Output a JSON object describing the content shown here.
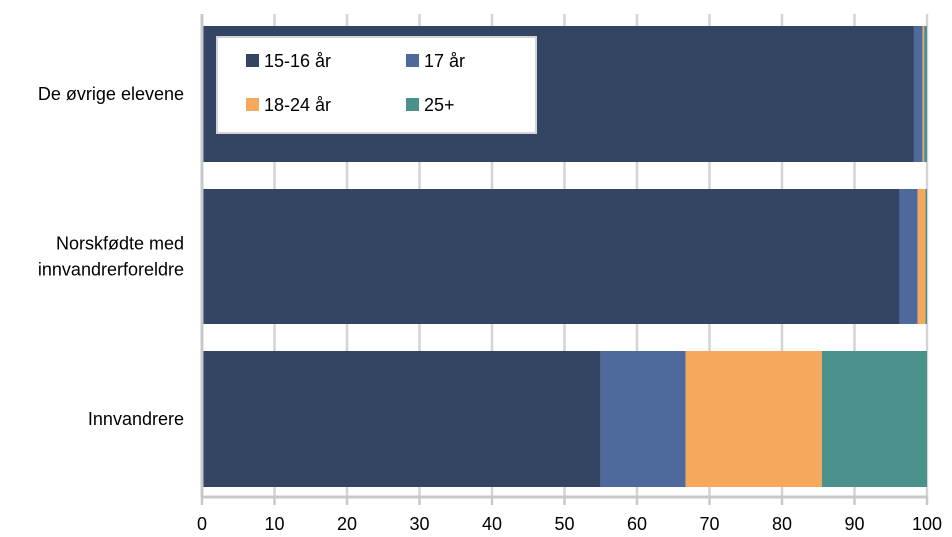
{
  "chart_data": {
    "type": "bar",
    "orientation": "horizontal",
    "stacked": true,
    "title": "",
    "xlabel": "",
    "ylabel": "",
    "xlim": [
      0,
      100
    ],
    "xticks": [
      "0",
      "10",
      "20",
      "30",
      "40",
      "50",
      "60",
      "70",
      "80",
      "90",
      "100"
    ],
    "grid": "vertical",
    "legend_position": "top-left",
    "categories": [
      "De øvrige elevene",
      "Norskfødte med innvandrerforeldre",
      "Innvandrere"
    ],
    "series": [
      {
        "name": "15-16 år",
        "color": "#344563",
        "values": [
          98.2,
          96.2,
          55.0
        ]
      },
      {
        "name": "17 år",
        "color": "#4e6a9c",
        "values": [
          1.2,
          2.5,
          11.7
        ]
      },
      {
        "name": "18-24 år",
        "color": "#f6a85c",
        "values": [
          0.2,
          1.1,
          18.8
        ]
      },
      {
        "name": "25+",
        "color": "#4a918c",
        "values": [
          0.4,
          0.2,
          14.5
        ]
      }
    ]
  }
}
